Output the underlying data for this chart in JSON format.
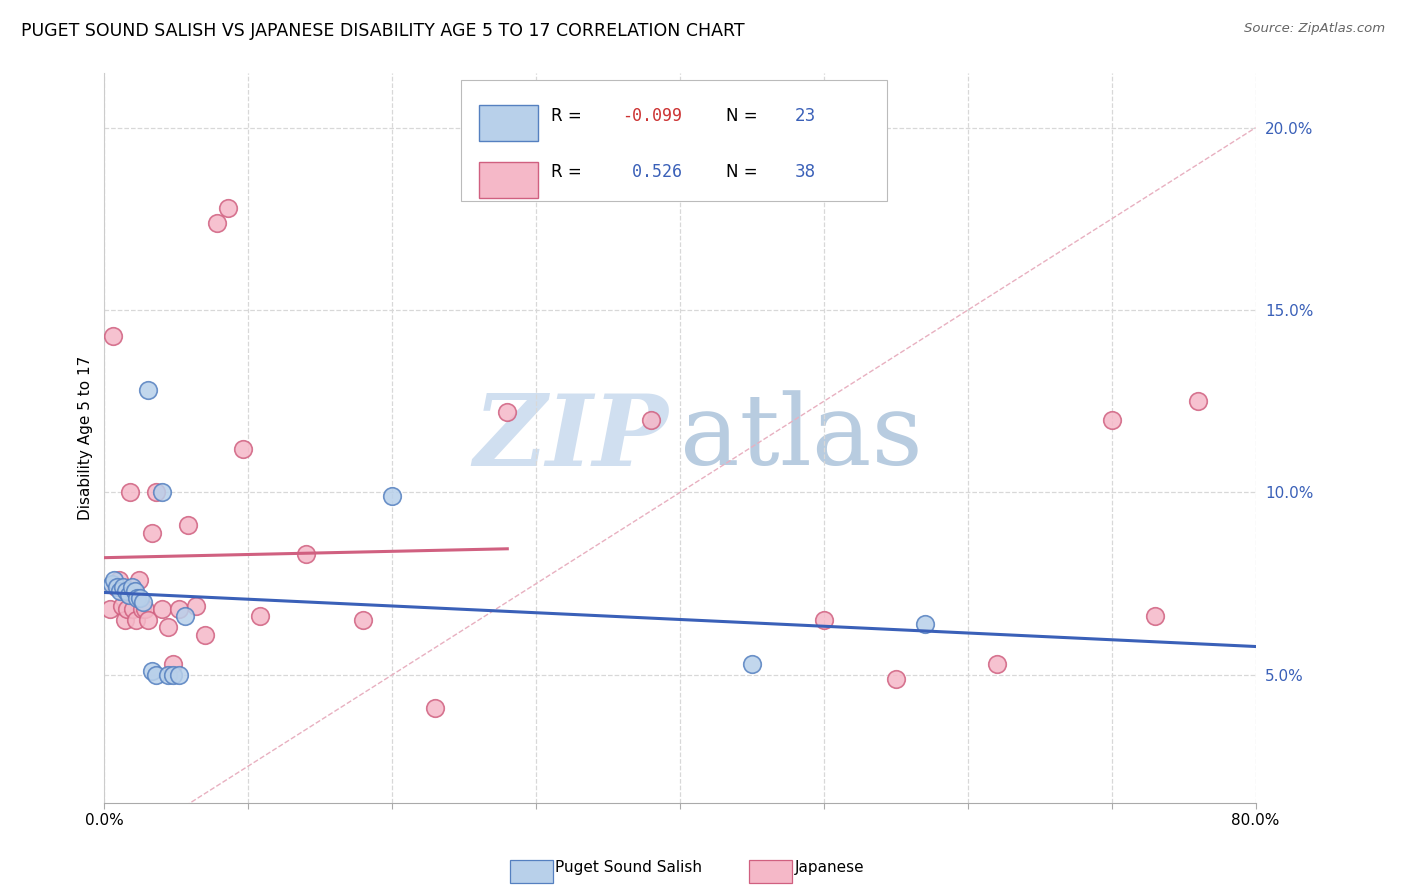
{
  "title": "PUGET SOUND SALISH VS JAPANESE DISABILITY AGE 5 TO 17 CORRELATION CHART",
  "source": "Source: ZipAtlas.com",
  "ylabel": "Disability Age 5 to 17",
  "xlim": [
    0.0,
    0.8
  ],
  "ylim": [
    0.015,
    0.215
  ],
  "xticks": [
    0.0,
    0.1,
    0.2,
    0.3,
    0.4,
    0.5,
    0.6,
    0.7,
    0.8
  ],
  "yticks_right": [
    0.05,
    0.1,
    0.15,
    0.2
  ],
  "ytick_labels_right": [
    "5.0%",
    "10.0%",
    "15.0%",
    "20.0%"
  ],
  "xtick_labels": [
    "0.0%",
    "",
    "",
    "",
    "",
    "",
    "",
    "",
    "80.0%"
  ],
  "R_blue": -0.099,
  "N_blue": 23,
  "R_pink": 0.526,
  "N_pink": 38,
  "blue_fill": "#b8d0ea",
  "pink_fill": "#f5b8c8",
  "blue_edge": "#5580c0",
  "pink_edge": "#d06080",
  "blue_line": "#3a60b8",
  "pink_line": "#d06080",
  "diag_color": "#e8b0c0",
  "grid_color": "#d8d8d8",
  "watermark_zip_color": "#d0dff0",
  "watermark_atlas_color": "#b8cce0",
  "blue_scatter_x": [
    0.005,
    0.007,
    0.009,
    0.011,
    0.013,
    0.015,
    0.017,
    0.019,
    0.021,
    0.023,
    0.025,
    0.027,
    0.03,
    0.033,
    0.036,
    0.04,
    0.044,
    0.048,
    0.052,
    0.056,
    0.2,
    0.45,
    0.57
  ],
  "blue_scatter_y": [
    0.075,
    0.076,
    0.074,
    0.073,
    0.074,
    0.073,
    0.072,
    0.074,
    0.073,
    0.071,
    0.071,
    0.07,
    0.128,
    0.051,
    0.05,
    0.1,
    0.05,
    0.05,
    0.05,
    0.066,
    0.099,
    0.053,
    0.064
  ],
  "pink_scatter_x": [
    0.004,
    0.006,
    0.008,
    0.01,
    0.012,
    0.014,
    0.016,
    0.018,
    0.02,
    0.022,
    0.024,
    0.026,
    0.028,
    0.03,
    0.033,
    0.036,
    0.04,
    0.044,
    0.048,
    0.052,
    0.058,
    0.064,
    0.07,
    0.078,
    0.086,
    0.096,
    0.108,
    0.14,
    0.18,
    0.23,
    0.28,
    0.38,
    0.5,
    0.55,
    0.62,
    0.7,
    0.73,
    0.76
  ],
  "pink_scatter_y": [
    0.068,
    0.143,
    0.074,
    0.076,
    0.069,
    0.065,
    0.068,
    0.1,
    0.068,
    0.065,
    0.076,
    0.068,
    0.068,
    0.065,
    0.089,
    0.1,
    0.068,
    0.063,
    0.053,
    0.068,
    0.091,
    0.069,
    0.061,
    0.174,
    0.178,
    0.112,
    0.066,
    0.083,
    0.065,
    0.041,
    0.122,
    0.12,
    0.065,
    0.049,
    0.053,
    0.12,
    0.066,
    0.125
  ]
}
